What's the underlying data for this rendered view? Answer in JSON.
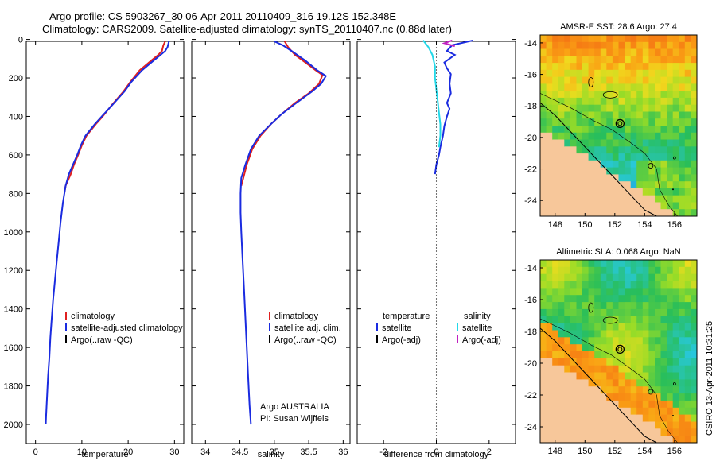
{
  "figure": {
    "title_line1": "Argo profile: CS 5903267_30 06-Apr-2011 20110409_316 19.12S 152.348E",
    "title_line2": "Climatology: CARS2009. Satellite-adjusted climatology: synTS_20110407.nc (0.88d later)",
    "stamp": "CSIRO 13-Apr-2011 10:31:25"
  },
  "chart_data": [
    {
      "id": "temperature",
      "type": "line",
      "xlabel": "temperature",
      "xlim": [
        -2,
        32
      ],
      "ylim": [
        2100,
        0
      ],
      "xticks": [
        0,
        10,
        20,
        30
      ],
      "yticks": [
        0,
        200,
        400,
        600,
        800,
        1000,
        1200,
        1400,
        1600,
        1800,
        2000
      ],
      "legend": {
        "position": "lower-right",
        "entries": [
          "climatology",
          "satellite-adjusted climatology",
          "Argo(..raw -QC)"
        ]
      },
      "series": [
        {
          "name": "climatology",
          "color": "#e02020",
          "points": [
            [
              28.0,
              10
            ],
            [
              27.6,
              30
            ],
            [
              27.3,
              60
            ],
            [
              26.5,
              80
            ],
            [
              25.0,
              110
            ],
            [
              22.5,
              160
            ],
            [
              20.5,
              220
            ],
            [
              19.0,
              270
            ],
            [
              16.5,
              340
            ],
            [
              14.5,
              400
            ],
            [
              13.0,
              440
            ],
            [
              11.0,
              500
            ],
            [
              10.0,
              550
            ],
            [
              9.2,
              600
            ],
            [
              8.3,
              650
            ],
            [
              7.6,
              700
            ],
            [
              6.5,
              760
            ],
            [
              6.3,
              790
            ]
          ]
        },
        {
          "name": "satellite-adjusted climatology",
          "color": "#1a2be0",
          "points": [
            [
              28.8,
              10
            ],
            [
              28.5,
              40
            ],
            [
              28.0,
              60
            ],
            [
              27.0,
              80
            ],
            [
              25.5,
              110
            ],
            [
              23.0,
              160
            ],
            [
              20.7,
              220
            ],
            [
              19.2,
              270
            ],
            [
              16.6,
              340
            ],
            [
              14.3,
              400
            ],
            [
              12.8,
              440
            ],
            [
              10.8,
              500
            ],
            [
              9.8,
              550
            ],
            [
              9.0,
              600
            ],
            [
              8.1,
              650
            ],
            [
              7.2,
              700
            ],
            [
              6.5,
              760
            ],
            [
              5.9,
              850
            ],
            [
              5.4,
              950
            ],
            [
              5.0,
              1050
            ],
            [
              4.6,
              1150
            ],
            [
              4.2,
              1250
            ],
            [
              3.8,
              1350
            ],
            [
              3.5,
              1450
            ],
            [
              3.2,
              1550
            ],
            [
              3.0,
              1650
            ],
            [
              2.7,
              1750
            ],
            [
              2.5,
              1850
            ],
            [
              2.3,
              1950
            ],
            [
              2.2,
              2000
            ]
          ]
        }
      ]
    },
    {
      "id": "salinity",
      "type": "line",
      "xlabel": "salinity",
      "xlim": [
        33.8,
        36.1
      ],
      "ylim": [
        2100,
        0
      ],
      "xticks": [
        34,
        34.5,
        35,
        35.5,
        36
      ],
      "legend": {
        "position": "lower-right",
        "entries": [
          "climatology",
          "satellite adj. clim.",
          "Argo(..raw -QC)"
        ]
      },
      "annotations": [
        "Argo AUSTRALIA",
        "PI: Susan Wijffels"
      ],
      "series": [
        {
          "name": "climatology",
          "color": "#e02020",
          "points": [
            [
              35.15,
              10
            ],
            [
              35.2,
              40
            ],
            [
              35.3,
              80
            ],
            [
              35.45,
              120
            ],
            [
              35.6,
              160
            ],
            [
              35.7,
              185
            ],
            [
              35.65,
              230
            ],
            [
              35.5,
              280
            ],
            [
              35.3,
              330
            ],
            [
              35.1,
              390
            ],
            [
              34.95,
              440
            ],
            [
              34.8,
              500
            ],
            [
              34.68,
              570
            ],
            [
              34.6,
              650
            ],
            [
              34.55,
              720
            ],
            [
              34.52,
              760
            ]
          ]
        },
        {
          "name": "satellite adj. clim.",
          "color": "#1a2be0",
          "points": [
            [
              35.0,
              10
            ],
            [
              35.12,
              30
            ],
            [
              35.25,
              60
            ],
            [
              35.45,
              110
            ],
            [
              35.62,
              160
            ],
            [
              35.75,
              190
            ],
            [
              35.68,
              230
            ],
            [
              35.55,
              270
            ],
            [
              35.32,
              330
            ],
            [
              35.1,
              390
            ],
            [
              34.95,
              440
            ],
            [
              34.78,
              500
            ],
            [
              34.66,
              570
            ],
            [
              34.58,
              650
            ],
            [
              34.52,
              720
            ],
            [
              34.51,
              800
            ],
            [
              34.51,
              900
            ],
            [
              34.52,
              1000
            ],
            [
              34.54,
              1150
            ],
            [
              34.56,
              1300
            ],
            [
              34.58,
              1450
            ],
            [
              34.6,
              1600
            ],
            [
              34.62,
              1750
            ],
            [
              34.64,
              1900
            ],
            [
              34.66,
              2000
            ]
          ]
        }
      ]
    },
    {
      "id": "difference",
      "type": "line",
      "xlabel": "difference from climatology",
      "xlim": [
        -3,
        3
      ],
      "ylim": [
        2100,
        0
      ],
      "xticks": [
        -2,
        0,
        2
      ],
      "legend": {
        "position": "lower-right",
        "entries": [
          "temperature",
          "satellite",
          "Argo(-adj)",
          "salinity",
          "satellite",
          "Argo(-adj)"
        ]
      },
      "series": [
        {
          "name": "temperature satellite",
          "color": "#1a2be0",
          "points": [
            [
              1.4,
              5
            ],
            [
              0.6,
              30
            ],
            [
              0.4,
              60
            ],
            [
              0.7,
              80
            ],
            [
              0.5,
              100
            ],
            [
              0.3,
              120
            ],
            [
              0.4,
              150
            ],
            [
              0.55,
              180
            ],
            [
              0.5,
              230
            ],
            [
              0.55,
              280
            ],
            [
              0.4,
              330
            ],
            [
              0.5,
              360
            ],
            [
              0.4,
              400
            ],
            [
              0.3,
              450
            ],
            [
              0.25,
              500
            ],
            [
              0.15,
              560
            ],
            [
              0.1,
              600
            ],
            [
              0.0,
              650
            ],
            [
              -0.05,
              700
            ]
          ]
        },
        {
          "name": "salinity satellite",
          "color": "#22d8e8",
          "points": [
            [
              -0.5,
              5
            ],
            [
              -0.3,
              40
            ],
            [
              -0.15,
              80
            ],
            [
              -0.05,
              140
            ],
            [
              -0.05,
              200
            ],
            [
              0.0,
              260
            ],
            [
              0.05,
              320
            ],
            [
              0.1,
              380
            ],
            [
              0.15,
              440
            ],
            [
              0.15,
              500
            ],
            [
              0.1,
              560
            ]
          ]
        },
        {
          "name": "salinity Argo(-adj)",
          "color": "#c020c0",
          "points": [
            [
              0.6,
              5
            ],
            [
              0.3,
              20
            ],
            [
              0.7,
              35
            ]
          ]
        }
      ]
    },
    {
      "id": "sst-map",
      "type": "heatmap",
      "title": "AMSR-E SST: 28.6 Argo: 27.4",
      "xlim": [
        147,
        157.5
      ],
      "ylim": [
        -25,
        -13.5
      ],
      "xticks": [
        148,
        150,
        152,
        154,
        156
      ],
      "yticks": [
        -14,
        -16,
        -18,
        -20,
        -22,
        -24
      ],
      "marker": {
        "lon": 152.348,
        "lat": -19.12
      }
    },
    {
      "id": "sla-map",
      "type": "heatmap",
      "title": "Altimetric SLA: 0.068 Argo: NaN",
      "xlim": [
        147,
        157.5
      ],
      "ylim": [
        -25,
        -13.5
      ],
      "xticks": [
        148,
        150,
        152,
        154,
        156
      ],
      "yticks": [
        -14,
        -16,
        -18,
        -20,
        -22,
        -24
      ],
      "marker": {
        "lon": 152.348,
        "lat": -19.12
      }
    }
  ]
}
